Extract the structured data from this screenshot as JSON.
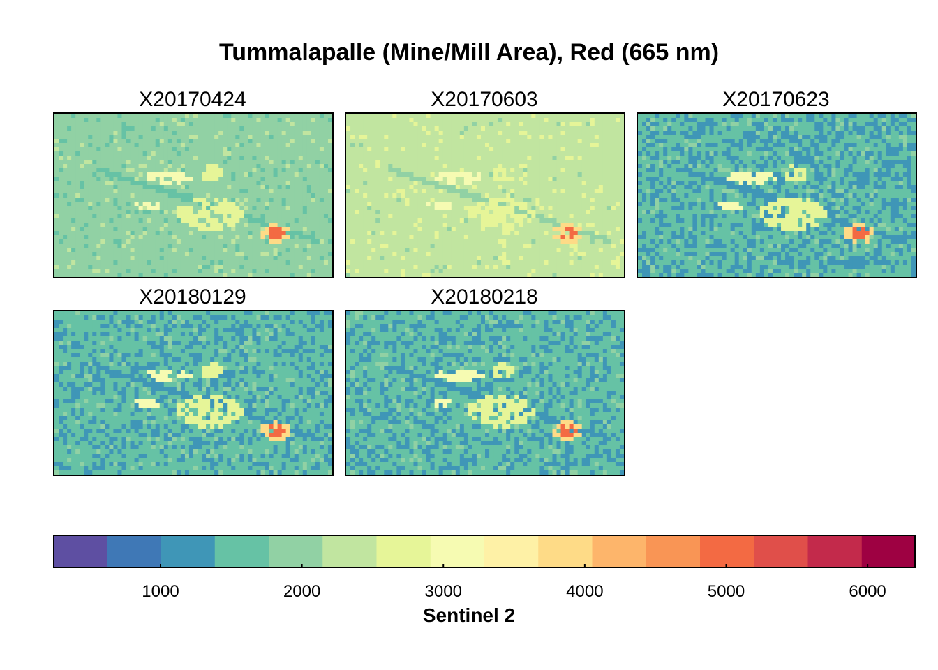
{
  "chart_data": {
    "type": "heatmap",
    "title": "Tummalapalle (Mine/Mill Area), Red (665 nm)",
    "panels": [
      {
        "name": "X20170424",
        "base_level": 4,
        "dark_fraction": 0.08
      },
      {
        "name": "X20170603",
        "base_level": 5,
        "dark_fraction": 0.02
      },
      {
        "name": "X20170623",
        "base_level": 3,
        "dark_fraction": 0.35
      },
      {
        "name": "X20180129",
        "base_level": 3,
        "dark_fraction": 0.3
      },
      {
        "name": "X20180218",
        "base_level": 3,
        "dark_fraction": 0.32
      }
    ],
    "colorbar": {
      "label": "Sentinel 2",
      "range": [
        240,
        6340
      ],
      "ticks": [
        1000,
        2000,
        3000,
        4000,
        5000,
        6000
      ],
      "tick_labels": [
        "1000",
        "2000",
        "3000",
        "4000",
        "5000",
        "6000"
      ],
      "colors": [
        "#5E4FA2",
        "#3F78B6",
        "#3F96B7",
        "#66C2A5",
        "#91D1A4",
        "#C1E5A0",
        "#E6F598",
        "#F6FBB2",
        "#FEF1A6",
        "#FEDB87",
        "#FDB56B",
        "#F99555",
        "#F36A43",
        "#E04F4A",
        "#C32A4B",
        "#9E0142"
      ]
    }
  }
}
